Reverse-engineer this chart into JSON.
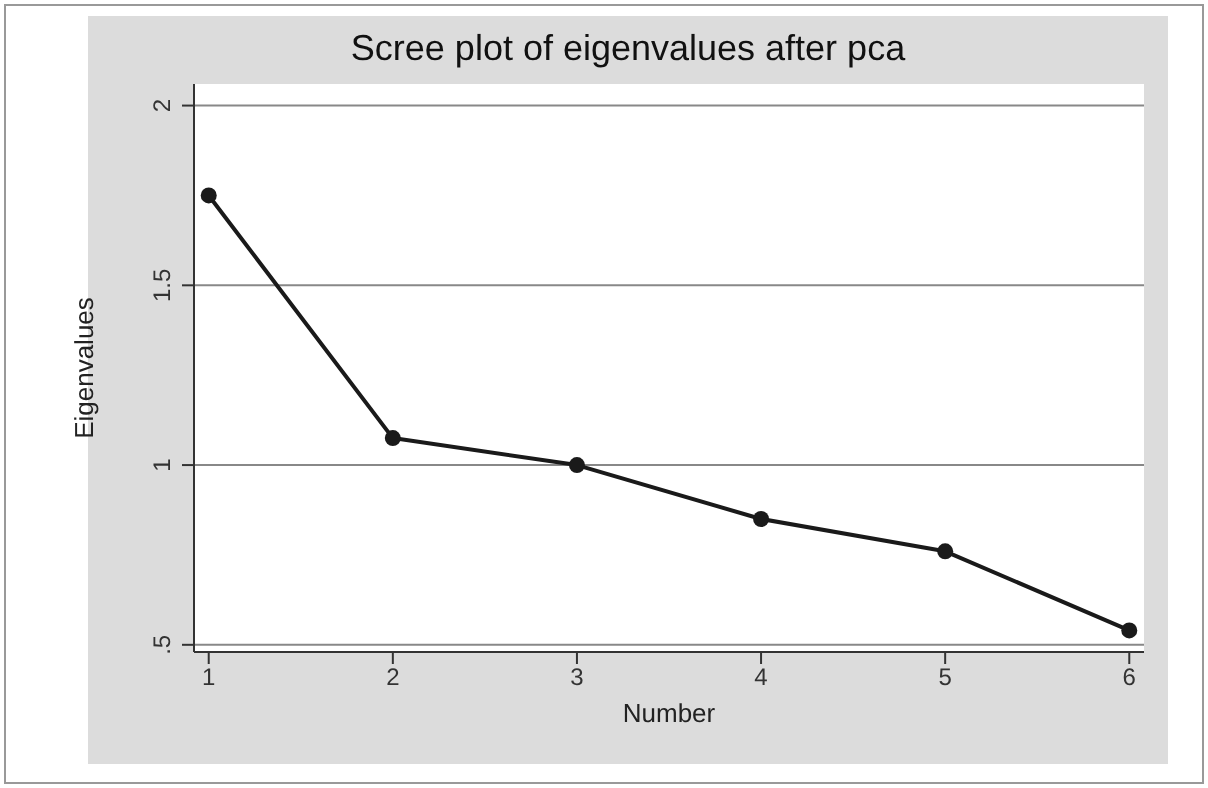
{
  "chart_data": {
    "type": "line",
    "title": "Scree plot of eigenvalues after pca",
    "xlabel": "Number",
    "ylabel": "Eigenvalues",
    "x": [
      1,
      2,
      3,
      4,
      5,
      6
    ],
    "series": [
      {
        "color": "#1a1a1a",
        "values": [
          1.75,
          1.075,
          1.0,
          0.85,
          0.76,
          0.54
        ]
      }
    ],
    "xlim": [
      0.92,
      6.08
    ],
    "xticks": [
      1,
      2,
      3,
      4,
      5,
      6
    ],
    "ylim": [
      0.48,
      2.06
    ],
    "yticks": [
      {
        "value": 0.5,
        "label": ".5"
      },
      1,
      1.5,
      2
    ],
    "grid": "y",
    "marker": "circle",
    "line_style": "solid"
  }
}
